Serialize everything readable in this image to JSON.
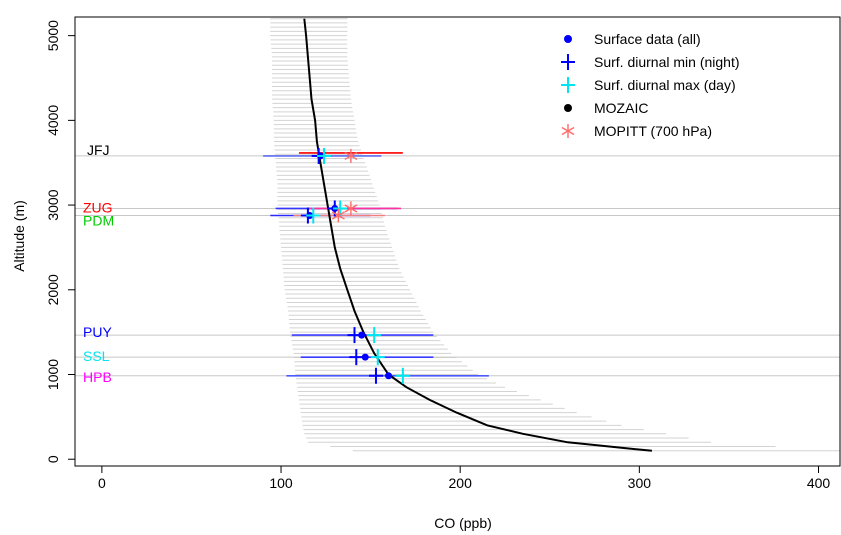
{
  "chart_data": {
    "type": "scatter",
    "xlabel": "CO (ppb)",
    "ylabel": "Altitude (m)",
    "xlim": [
      -15,
      412
    ],
    "ylim": [
      -80,
      5220
    ],
    "x_ticks": [
      0,
      100,
      200,
      300,
      400
    ],
    "y_ticks": [
      0,
      1000,
      2000,
      3000,
      4000,
      5000
    ],
    "grid": false,
    "legend_position": "top-right",
    "legend": [
      {
        "label": "Surface data (all)",
        "marker": "dot",
        "color": "#0000ff"
      },
      {
        "label": "Surf. diurnal min (night)",
        "marker": "plus",
        "color": "#0000ff"
      },
      {
        "label": "Surf. diurnal max (day)",
        "marker": "plus",
        "color": "#00e5ee"
      },
      {
        "label": "MOZAIC",
        "marker": "dot",
        "color": "#000000"
      },
      {
        "label": "MOPITT (700 hPa)",
        "marker": "asterisk",
        "color": "#ff6a6a"
      }
    ],
    "mozaic_profile": {
      "color": "#000000",
      "altitude": [
        5200,
        5000,
        4750,
        4500,
        4250,
        4000,
        3750,
        3500,
        3250,
        3000,
        2750,
        2500,
        2250,
        2000,
        1750,
        1500,
        1250,
        1000,
        850,
        700,
        550,
        400,
        300,
        200,
        100
      ],
      "co": [
        113,
        114,
        115,
        116,
        117,
        119,
        120,
        122,
        124,
        126,
        128,
        130,
        133,
        137,
        141,
        146,
        152,
        160,
        170,
        183,
        198,
        215,
        235,
        260,
        307
      ],
      "spread_low": [
        94,
        94,
        95,
        95,
        95,
        96,
        96,
        97,
        98,
        98,
        99,
        100,
        101,
        102,
        104,
        105,
        107,
        108,
        109,
        110,
        111,
        112,
        113,
        115,
        140
      ],
      "spread_high": [
        137,
        137,
        137,
        138,
        139,
        141,
        143,
        147,
        151,
        155,
        158,
        162,
        166,
        172,
        178,
        185,
        195,
        210,
        225,
        245,
        265,
        290,
        315,
        340,
        412
      ]
    },
    "stations": [
      {
        "name": "JFJ",
        "label_color": "#000000",
        "altitude": 3580,
        "surface_mean": 122,
        "night_min": 121,
        "day_max": 124,
        "mopitt": 139,
        "range_low": 90,
        "range_high": 156,
        "mopitt_range_low": 110,
        "mopitt_range_high": 168
      },
      {
        "name": "ZUG",
        "label_color": "#ff0000",
        "altitude": 2960,
        "surface_mean": 130,
        "night_min": 130,
        "day_max": 133,
        "mopitt": 139,
        "range_low": 97,
        "range_high": 165,
        "mopitt_range_low": 115,
        "mopitt_range_high": 167
      },
      {
        "name": "PDM",
        "label_color": "#00cd00",
        "altitude": 2877,
        "surface_mean": 116,
        "night_min": 115,
        "day_max": 118,
        "mopitt": 132,
        "range_low": 94,
        "range_high": 150,
        "mopitt_range_low": 107,
        "mopitt_range_high": 158
      },
      {
        "name": "PUY",
        "label_color": "#0000ff",
        "altitude": 1465,
        "surface_mean": 145,
        "night_min": 141,
        "day_max": 152,
        "range_low": 106,
        "range_high": 185
      },
      {
        "name": "SSL",
        "label_color": "#00e5ee",
        "altitude": 1205,
        "surface_mean": 147,
        "night_min": 142,
        "day_max": 154,
        "range_low": 111,
        "range_high": 185
      },
      {
        "name": "HPB",
        "label_color": "#ff00ff",
        "altitude": 985,
        "surface_mean": 160,
        "night_min": 153,
        "day_max": 168,
        "range_low": 103,
        "range_high": 216
      }
    ]
  }
}
